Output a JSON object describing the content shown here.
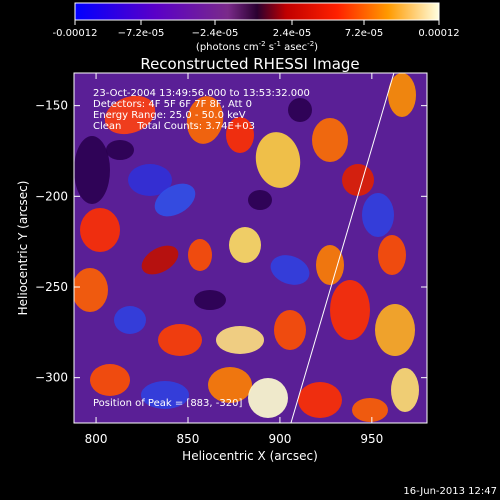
{
  "chart_data": {
    "type": "heatmap",
    "title": "Reconstructed RHESSI Image",
    "xlabel": "Heliocentric X (arcsec)",
    "ylabel": "Heliocentric Y (arcsec)",
    "xlim": [
      788,
      980
    ],
    "ylim": [
      -325,
      -132
    ],
    "x_ticks": [
      "800",
      "850",
      "900",
      "950"
    ],
    "y_ticks": [
      "-150",
      "-200",
      "-250",
      "-300"
    ],
    "colorbar": {
      "range": [
        -0.00012,
        0.00012
      ],
      "tick_labels": [
        "-0.00012",
        "−7.2e-05",
        "−2.4e-05",
        "2.4e-05",
        "7.2e-05",
        "0.00012"
      ],
      "units_label": "(photons cm",
      "units_sup1": "-2",
      "units_mid": " s",
      "units_sup2": "-1",
      "units_mid2": " asec",
      "units_sup3": "-2",
      "units_end": ")"
    },
    "annotations": [
      "23-Oct-2004 13:49:56.000 to 13:53:32.000",
      "Detectors: 4F 5F 6F 7F 8F, Att 0",
      "Energy Range: 25.0 - 50.0 keV",
      "Clean     Total Counts: 3.74E+03"
    ],
    "peak_label": "Position of Peak = [883, -320]",
    "limb_line": {
      "x1": 906,
      "y1": -325,
      "x2": 962,
      "y2": -132
    },
    "grid": false,
    "legend": "none"
  },
  "footer": {
    "date": "16-Jun-2013 12:47"
  }
}
